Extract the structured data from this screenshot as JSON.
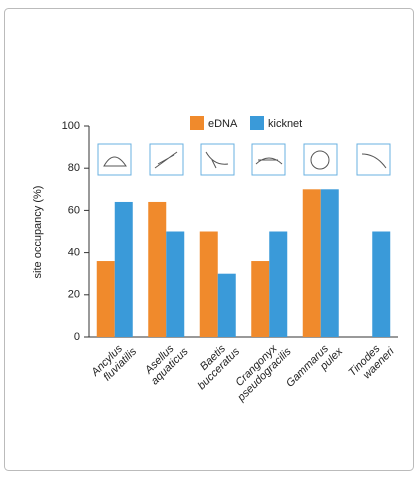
{
  "chart_data": {
    "type": "bar",
    "categories": [
      "Ancylus fluviatilis",
      "Asellus aquaticus",
      "Baetis bucceratus",
      "Crangonyx pseudogracilis",
      "Gammarus pulex",
      "Tinodes waeneri"
    ],
    "series": [
      {
        "name": "eDNA",
        "color": "#f08a2c",
        "values": [
          36,
          64,
          50,
          36,
          70,
          0
        ]
      },
      {
        "name": "kicknet",
        "color": "#3a9ad9",
        "values": [
          64,
          50,
          30,
          50,
          70,
          50
        ]
      }
    ],
    "y_label": "site occupancy (%)",
    "ylim": [
      0,
      100
    ],
    "yticks": [
      0,
      20,
      40,
      60,
      80,
      100
    ]
  }
}
